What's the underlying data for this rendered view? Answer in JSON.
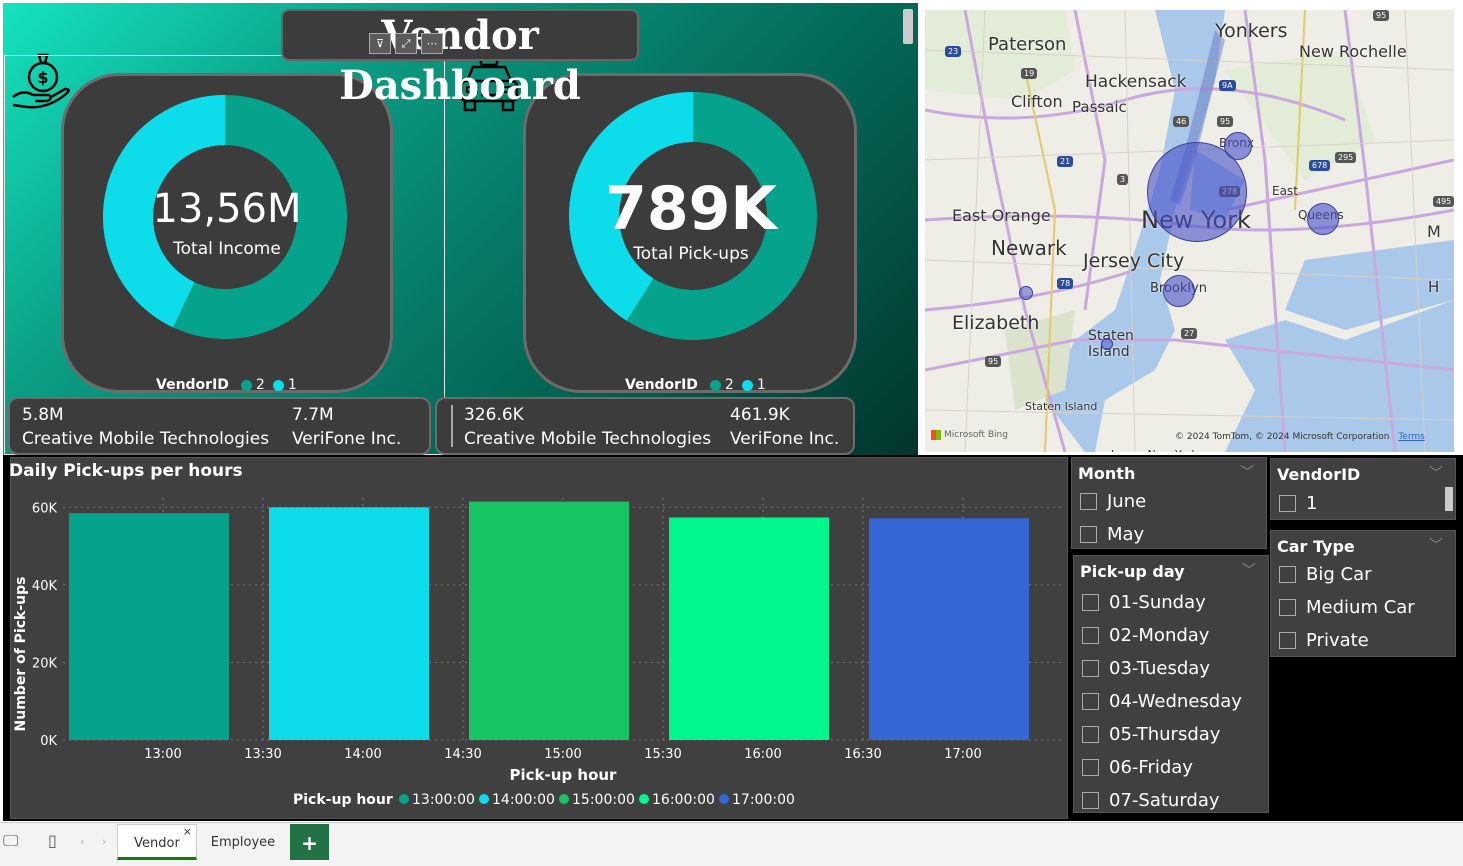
{
  "header": {
    "title": "Vendor Dashboard"
  },
  "kpi_income": {
    "value": "13,56M",
    "label": "Total Income",
    "legend_title": "VendorID",
    "legend_items": [
      "2",
      "1"
    ],
    "share_vendor1": 0.43,
    "vendor_a_value": "5.8M",
    "vendor_a_name": "Creative Mobile Technologies",
    "vendor_b_value": "7.7M",
    "vendor_b_name": "VeriFone Inc."
  },
  "kpi_pickups": {
    "value": "789K",
    "label": "Total Pick-ups",
    "legend_title": "VendorID",
    "legend_items": [
      "2",
      "1"
    ],
    "share_vendor1": 0.41,
    "vendor_a_value": "326.6K",
    "vendor_a_name": "Creative Mobile Technologies",
    "vendor_b_value": "461.9K",
    "vendor_b_name": "VeriFone Inc."
  },
  "colors": {
    "vendor1": "#0ddcea",
    "vendor2": "#06a38c",
    "panel": "#3c3c3c"
  },
  "map": {
    "labels": [
      "Paterson",
      "Yonkers",
      "New Rochelle",
      "Hackensack",
      "Clifton",
      "Passaic",
      "Bronx",
      "New York",
      "East",
      "Queens",
      "East Orange",
      "Newark",
      "Jersey City",
      "Brooklyn",
      "Elizabeth",
      "Staten",
      "Island",
      "Staten Island",
      "M",
      "H",
      "Lower New York"
    ],
    "highways": [
      "23",
      "19",
      "95",
      "9A",
      "46",
      "95",
      "21",
      "3",
      "278",
      "678",
      "295",
      "495",
      "78",
      "27",
      "95"
    ],
    "copyright": "© 2024 TomTom, © 2024 Microsoft Corporation",
    "terms": "Terms",
    "bing": "Microsoft Bing"
  },
  "chart_data": {
    "type": "bar",
    "title": "Daily Pick-ups per hours",
    "xlabel": "Pick-up hour",
    "ylabel": "Number of Pick-ups",
    "ylim": [
      0,
      65000
    ],
    "yticks": [
      "0K",
      "20K",
      "40K",
      "60K"
    ],
    "xticks": [
      "13:00",
      "13:30",
      "14:00",
      "14:30",
      "15:00",
      "15:30",
      "16:00",
      "16:30",
      "17:00"
    ],
    "categories": [
      "13:00:00",
      "14:00:00",
      "15:00:00",
      "16:00:00",
      "17:00:00"
    ],
    "values": [
      58500,
      60000,
      61500,
      57400,
      57200
    ],
    "colors": [
      "#06a38c",
      "#0ddcea",
      "#17c463",
      "#00f78e",
      "#3466d6"
    ],
    "legend_title": "Pick-up hour",
    "legend_position": "bottom"
  },
  "slicers": {
    "month": {
      "title": "Month",
      "items": [
        "June",
        "May"
      ]
    },
    "pickup_day": {
      "title": "Pick-up day",
      "items": [
        "01-Sunday",
        "02-Monday",
        "03-Tuesday",
        "04-Wednesday",
        "05-Thursday",
        "06-Friday",
        "07-Saturday"
      ]
    },
    "vendor": {
      "title": "VendorID",
      "items": [
        "1"
      ]
    },
    "car_type": {
      "title": "Car Type",
      "items": [
        "Big Car",
        "Medium Car",
        "Private"
      ]
    }
  },
  "tabs": {
    "vendor": "Vendor",
    "employee": "Employee",
    "close": "×",
    "add": "+"
  }
}
